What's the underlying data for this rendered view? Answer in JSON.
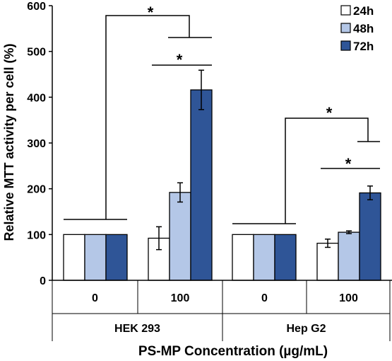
{
  "chart_data": {
    "type": "bar",
    "ylabel": "Relative MTT activity per cell (%)",
    "xlabel": "PS-MP Concentration (µg/mL)",
    "ylim": [
      0,
      600
    ],
    "yticks": [
      0,
      100,
      200,
      300,
      400,
      500,
      600
    ],
    "grid": false,
    "legend_position": "top-right",
    "groups": [
      "HEK 293",
      "Hep G2"
    ],
    "categories": [
      "0",
      "100",
      "0",
      "100"
    ],
    "colors": {
      "24h": "#ffffff",
      "48h": "#b4c7e7",
      "72h": "#2f5597"
    },
    "series": [
      {
        "name": "24h",
        "values": [
          100,
          92,
          100,
          81
        ],
        "errors": [
          0,
          25,
          0,
          9
        ]
      },
      {
        "name": "48h",
        "values": [
          100,
          192,
          100,
          105
        ],
        "errors": [
          0,
          21,
          0,
          3
        ]
      },
      {
        "name": "72h",
        "values": [
          100,
          416,
          100,
          191
        ],
        "errors": [
          0,
          43,
          0,
          15
        ]
      }
    ],
    "significance": [
      {
        "label": "*"
      },
      {
        "label": "*"
      },
      {
        "label": "*"
      },
      {
        "label": "*"
      }
    ]
  }
}
